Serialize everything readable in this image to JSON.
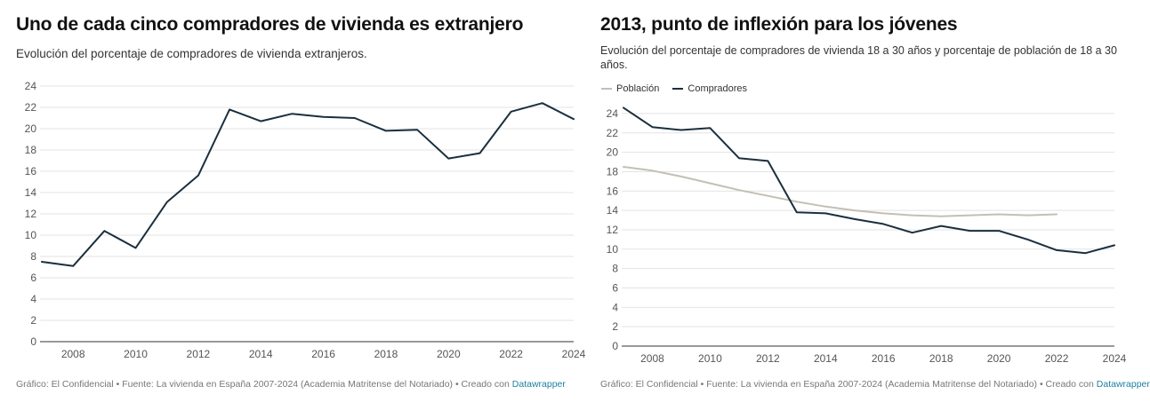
{
  "charts": {
    "left": {
      "title": "Uno de cada cinco compradores de vivienda es extranjero",
      "subtitle": "Evolución del porcentaje de compradores de vivienda extranjeros.",
      "footer_text": "Gráfico: El Confidencial • Fuente: La vivienda en España 2007-2024 (Academia Matritense del Notariado) • Creado con",
      "footer_link": "Datawrapper"
    },
    "right": {
      "title": "2013, punto de inflexión para los jóvenes",
      "subtitle": "Evolución del porcentaje de compradores de vivienda 18 a 30 años y porcentaje de población de 18 a 30 años.",
      "legend": [
        "Población",
        "Compradores"
      ],
      "footer_text": "Gráfico: El Confidencial • Fuente: La vivienda en España 2007-2024 (Academia Matritense del Notariado) • Creado con",
      "footer_link": "Datawrapper"
    }
  },
  "chart_data": [
    {
      "type": "line",
      "title": "Uno de cada cinco compradores de vivienda es extranjero",
      "subtitle": "Evolución del porcentaje de compradores de vivienda extranjeros.",
      "xlabel": "",
      "ylabel": "",
      "x": [
        2007,
        2008,
        2009,
        2010,
        2011,
        2012,
        2013,
        2014,
        2015,
        2016,
        2017,
        2018,
        2019,
        2020,
        2021,
        2022,
        2023,
        2024
      ],
      "xticks": [
        2008,
        2010,
        2012,
        2014,
        2016,
        2018,
        2020,
        2022,
        2024
      ],
      "yticks": [
        0,
        2,
        4,
        6,
        8,
        10,
        12,
        14,
        16,
        18,
        20,
        22,
        24
      ],
      "xlim": [
        2007,
        2024
      ],
      "ylim": [
        0,
        24
      ],
      "grid": true,
      "series": [
        {
          "color": "#1b2f3e",
          "values": [
            7.5,
            7.1,
            10.4,
            8.8,
            13.1,
            15.6,
            21.8,
            20.7,
            21.4,
            21.1,
            21.0,
            19.8,
            19.9,
            17.2,
            17.7,
            21.6,
            22.4,
            20.9
          ]
        }
      ]
    },
    {
      "type": "line",
      "title": "2013, punto de inflexión para los jóvenes",
      "subtitle": "Evolución del porcentaje de compradores de vivienda 18 a 30 años y porcentaje de población de 18 a 30 años.",
      "xlabel": "",
      "ylabel": "",
      "x": [
        2007,
        2008,
        2009,
        2010,
        2011,
        2012,
        2013,
        2014,
        2015,
        2016,
        2017,
        2018,
        2019,
        2020,
        2021,
        2022,
        2023,
        2024
      ],
      "xticks": [
        2008,
        2010,
        2012,
        2014,
        2016,
        2018,
        2020,
        2022,
        2024
      ],
      "yticks": [
        0,
        2,
        4,
        6,
        8,
        10,
        12,
        14,
        16,
        18,
        20,
        22,
        24
      ],
      "xlim": [
        2007,
        2024
      ],
      "ylim": [
        0,
        25
      ],
      "grid": true,
      "legend_position": "top-left",
      "series": [
        {
          "name": "Población",
          "color": "#c3bfb4",
          "values": [
            18.5,
            18.1,
            17.5,
            16.8,
            16.1,
            15.5,
            14.9,
            14.4,
            14.0,
            13.7,
            13.5,
            13.4,
            13.5,
            13.6,
            13.5,
            13.6,
            null,
            null
          ]
        },
        {
          "name": "Compradores",
          "color": "#1b2f3e",
          "values": [
            24.6,
            22.6,
            22.3,
            22.5,
            19.4,
            19.1,
            13.8,
            13.7,
            13.1,
            12.6,
            11.7,
            12.4,
            11.9,
            11.9,
            11.0,
            9.9,
            9.6,
            10.4
          ]
        }
      ]
    }
  ]
}
